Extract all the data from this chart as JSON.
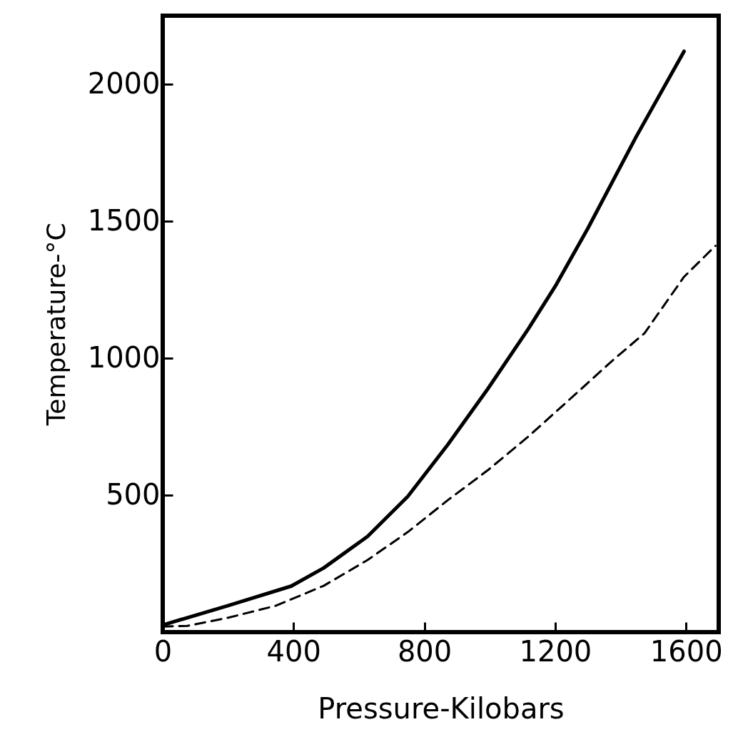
{
  "chart_data": {
    "type": "line",
    "xlabel": "Pressure-Kilobars",
    "ylabel": "Temperature-°C",
    "xlim": [
      0,
      1700
    ],
    "ylim": [
      0,
      2250
    ],
    "xticks": [
      0,
      400,
      800,
      1200,
      1600
    ],
    "yticks": [
      500,
      1000,
      1500,
      2000
    ],
    "grid": false,
    "series": [
      {
        "color": "#000000",
        "line_style": "solid",
        "x": [
          0,
          198,
          393,
          492,
          626,
          749,
          872,
          994,
          1118,
          1203,
          1300,
          1447,
          1594
        ],
        "values": [
          26,
          96,
          168,
          234,
          349,
          495,
          685,
          888,
          1107,
          1268,
          1474,
          1807,
          2120
        ]
      },
      {
        "color": "#000000",
        "line_style": "dashed",
        "x": [
          0,
          75,
          198,
          345,
          492,
          626,
          749,
          872,
          994,
          1118,
          1239,
          1374,
          1473,
          1594,
          1690
        ],
        "values": [
          20,
          23,
          52,
          96,
          169,
          263,
          365,
          482,
          591,
          714,
          844,
          990,
          1091,
          1297,
          1410
        ]
      }
    ]
  }
}
